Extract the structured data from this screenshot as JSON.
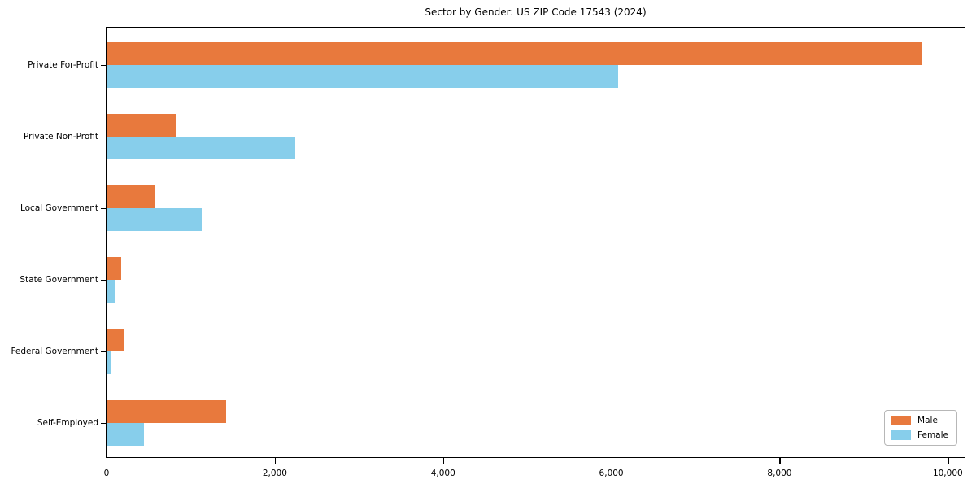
{
  "chart": {
    "title": "Sector by Gender: US ZIP Code 17543 (2024)"
  },
  "chart_data": {
    "type": "bar",
    "orientation": "horizontal",
    "title": "Sector by Gender: US ZIP Code 17543 (2024)",
    "categories": [
      "Private For-Profit",
      "Private Non-Profit",
      "Local Government",
      "State Government",
      "Federal Government",
      "Self-Employed"
    ],
    "series": [
      {
        "name": "Male",
        "color": "#E8793D",
        "values": [
          9700,
          830,
          580,
          170,
          200,
          1420
        ]
      },
      {
        "name": "Female",
        "color": "#87CEEB",
        "values": [
          6080,
          2240,
          1130,
          110,
          45,
          440
        ]
      }
    ],
    "xlabel": "",
    "ylabel": "",
    "xlim": [
      0,
      10200
    ],
    "x_ticks": [
      0,
      2000,
      4000,
      6000,
      8000,
      10000
    ],
    "x_tick_labels": [
      "0",
      "2,000",
      "4,000",
      "6,000",
      "8,000",
      "10,000"
    ],
    "grid": false,
    "legend": {
      "position": "lower right",
      "entries": [
        "Male",
        "Female"
      ]
    }
  }
}
